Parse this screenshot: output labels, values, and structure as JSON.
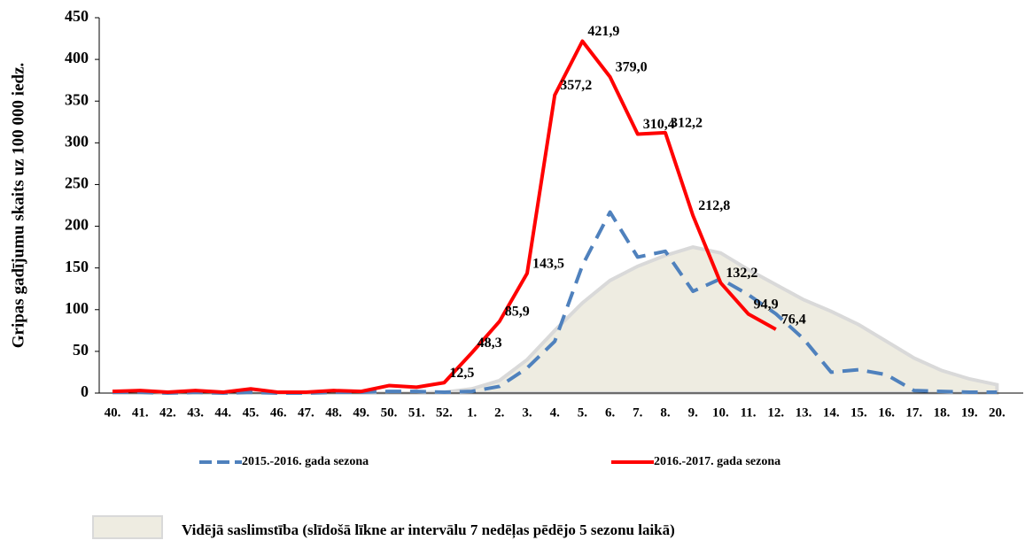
{
  "chart_data": {
    "type": "line",
    "y_label": "Gripas gadījumu skaits uz 100 000 iedz.",
    "categories": [
      "40.",
      "41.",
      "42.",
      "43.",
      "44.",
      "45.",
      "46.",
      "47.",
      "48.",
      "49.",
      "50.",
      "51.",
      "52.",
      "1.",
      "2.",
      "3.",
      "4.",
      "5.",
      "6.",
      "7.",
      "8.",
      "9.",
      "10.",
      "11.",
      "12.",
      "13.",
      "14.",
      "15.",
      "16.",
      "17.",
      "18.",
      "19.",
      "20."
    ],
    "ylim": [
      0,
      450
    ],
    "yticks": [
      0,
      50,
      100,
      150,
      200,
      250,
      300,
      350,
      400,
      450
    ],
    "grid": false,
    "area": {
      "name": "Vidējā saslimstība (slīdošā līkne ar intervālu 7 nedēļas pēdējo 5 sezonu laikā)",
      "color": "#eeece1",
      "values": [
        0,
        0,
        0,
        0,
        0,
        0,
        0,
        0,
        0,
        0,
        0,
        0,
        1,
        5,
        15,
        40,
        75,
        108,
        135,
        152,
        165,
        175,
        168,
        148,
        130,
        112,
        98,
        82,
        62,
        42,
        27,
        17,
        10
      ]
    },
    "series": [
      {
        "name": "2015.-2016. gada sezona",
        "color": "#4f81bd",
        "dash": true,
        "values": [
          1,
          1,
          0,
          1,
          0,
          1,
          0,
          0,
          1,
          1,
          2,
          2,
          1,
          2,
          8,
          30,
          62,
          153,
          217,
          163,
          170,
          122,
          137,
          118,
          95,
          65,
          25,
          28,
          22,
          3,
          2,
          1,
          1
        ]
      },
      {
        "name": "2016.-2017. gada sezona",
        "color": "#ff0000",
        "dash": false,
        "values": [
          2,
          3,
          1,
          3,
          1,
          5,
          1,
          1,
          3,
          2,
          9,
          7,
          12.5,
          48.3,
          85.9,
          143.5,
          357.2,
          421.9,
          379.0,
          310.4,
          312.2,
          212.8,
          132.2,
          94.9,
          76.4,
          null,
          null,
          null,
          null,
          null,
          null,
          null,
          null
        ],
        "value_labels": [
          null,
          null,
          null,
          null,
          null,
          null,
          null,
          null,
          null,
          null,
          null,
          null,
          "12,5",
          "48,3",
          "85,9",
          "143,5",
          "357,2",
          "421,9",
          "379,0",
          "310,4",
          "312,2",
          "212,8",
          "132,2",
          "94,9",
          "76,4",
          null,
          null,
          null,
          null,
          null,
          null,
          null,
          null
        ]
      }
    ]
  }
}
